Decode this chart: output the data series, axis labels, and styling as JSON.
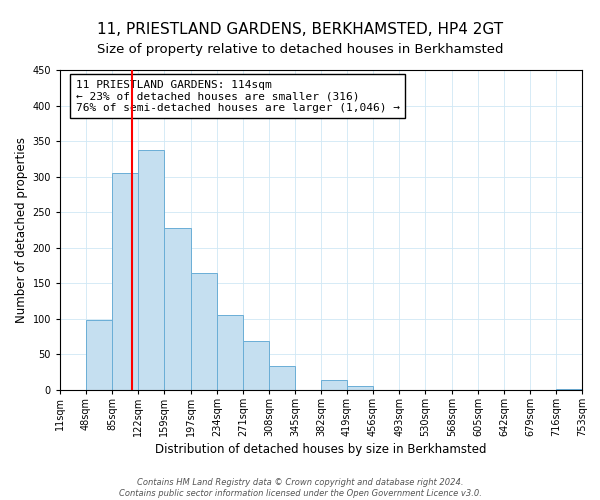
{
  "title": "11, PRIESTLAND GARDENS, BERKHAMSTED, HP4 2GT",
  "subtitle": "Size of property relative to detached houses in Berkhamsted",
  "xlabel": "Distribution of detached houses by size in Berkhamsted",
  "ylabel": "Number of detached properties",
  "bin_edges": [
    11,
    48,
    85,
    122,
    159,
    197,
    234,
    271,
    308,
    345,
    382,
    419,
    456,
    493,
    530,
    568,
    605,
    642,
    679,
    716,
    753
  ],
  "bin_labels": [
    "11sqm",
    "48sqm",
    "85sqm",
    "122sqm",
    "159sqm",
    "197sqm",
    "234sqm",
    "271sqm",
    "308sqm",
    "345sqm",
    "382sqm",
    "419sqm",
    "456sqm",
    "493sqm",
    "530sqm",
    "568sqm",
    "605sqm",
    "642sqm",
    "679sqm",
    "716sqm",
    "753sqm"
  ],
  "counts": [
    0,
    99,
    305,
    338,
    228,
    165,
    105,
    69,
    34,
    0,
    14,
    5,
    0,
    0,
    0,
    0,
    0,
    0,
    0,
    2
  ],
  "bar_color": "#c5dff0",
  "bar_edge_color": "#6aaed6",
  "vline_x": 114,
  "vline_color": "red",
  "ylim": [
    0,
    450
  ],
  "yticks": [
    0,
    50,
    100,
    150,
    200,
    250,
    300,
    350,
    400,
    450
  ],
  "annotation_line1": "11 PRIESTLAND GARDENS: 114sqm",
  "annotation_line2": "← 23% of detached houses are smaller (316)",
  "annotation_line3": "76% of semi-detached houses are larger (1,046) →",
  "footer_line1": "Contains HM Land Registry data © Crown copyright and database right 2024.",
  "footer_line2": "Contains public sector information licensed under the Open Government Licence v3.0.",
  "title_fontsize": 11,
  "subtitle_fontsize": 9.5,
  "axis_label_fontsize": 8.5,
  "tick_fontsize": 7,
  "annotation_fontsize": 8,
  "footer_fontsize": 6
}
